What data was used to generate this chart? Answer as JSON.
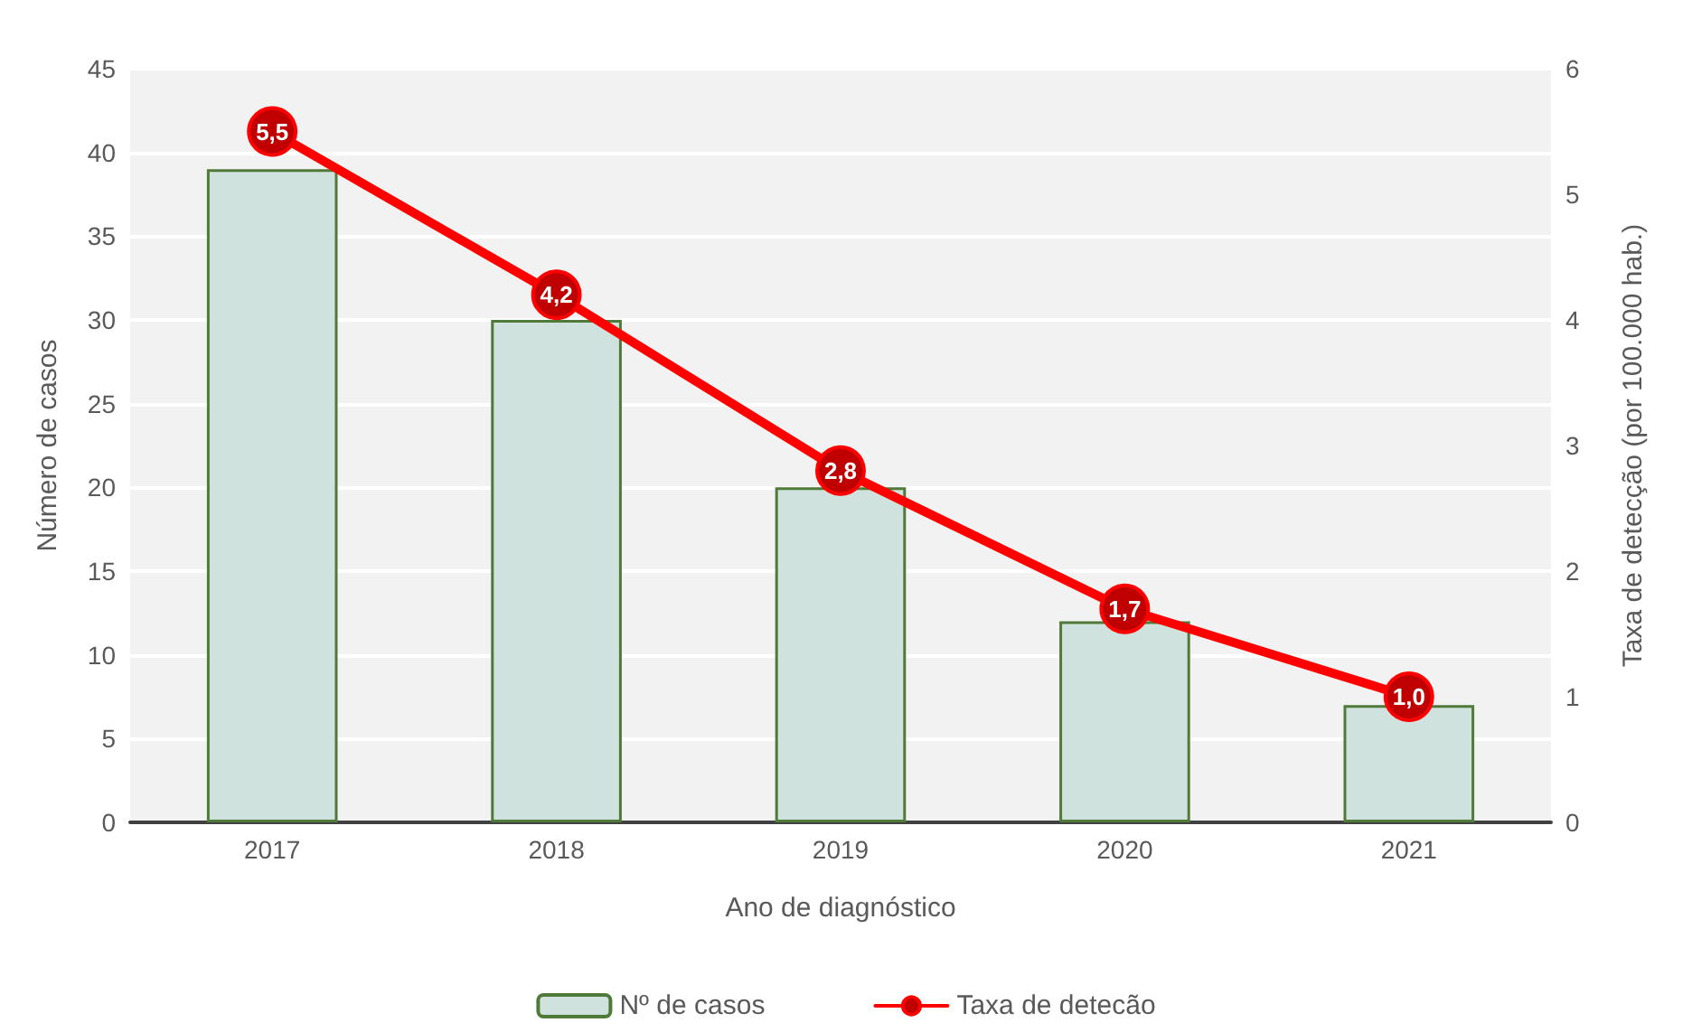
{
  "chart_data": {
    "type": "bar",
    "xlabel": "Ano de diagnóstico",
    "ylabel": "Número de casos",
    "y2label": "Taxa de detecção (por 100.000 hab.)",
    "categories": [
      "2017",
      "2018",
      "2019",
      "2020",
      "2021"
    ],
    "series": [
      {
        "name": "Nº de casos",
        "color": "#d0e2de",
        "values": [
          39,
          30,
          20,
          12,
          7
        ]
      },
      {
        "name": "Taxa de detecão",
        "type": "line",
        "axis": "y2",
        "color": "#ff0000",
        "marker": "circle",
        "values": [
          5.5,
          4.2,
          2.8,
          1.7,
          1.0
        ],
        "value_labels": [
          "5,5",
          "4,2",
          "2,8",
          "1,7",
          "1,0"
        ]
      }
    ],
    "ylim": [
      0,
      45
    ],
    "yticks": [
      0,
      5,
      10,
      15,
      20,
      25,
      30,
      35,
      40,
      45
    ],
    "y2lim": [
      0,
      6
    ],
    "y2ticks": [
      0,
      1,
      2,
      3,
      4,
      5,
      6
    ],
    "grid": "y",
    "legend": "bottom"
  }
}
